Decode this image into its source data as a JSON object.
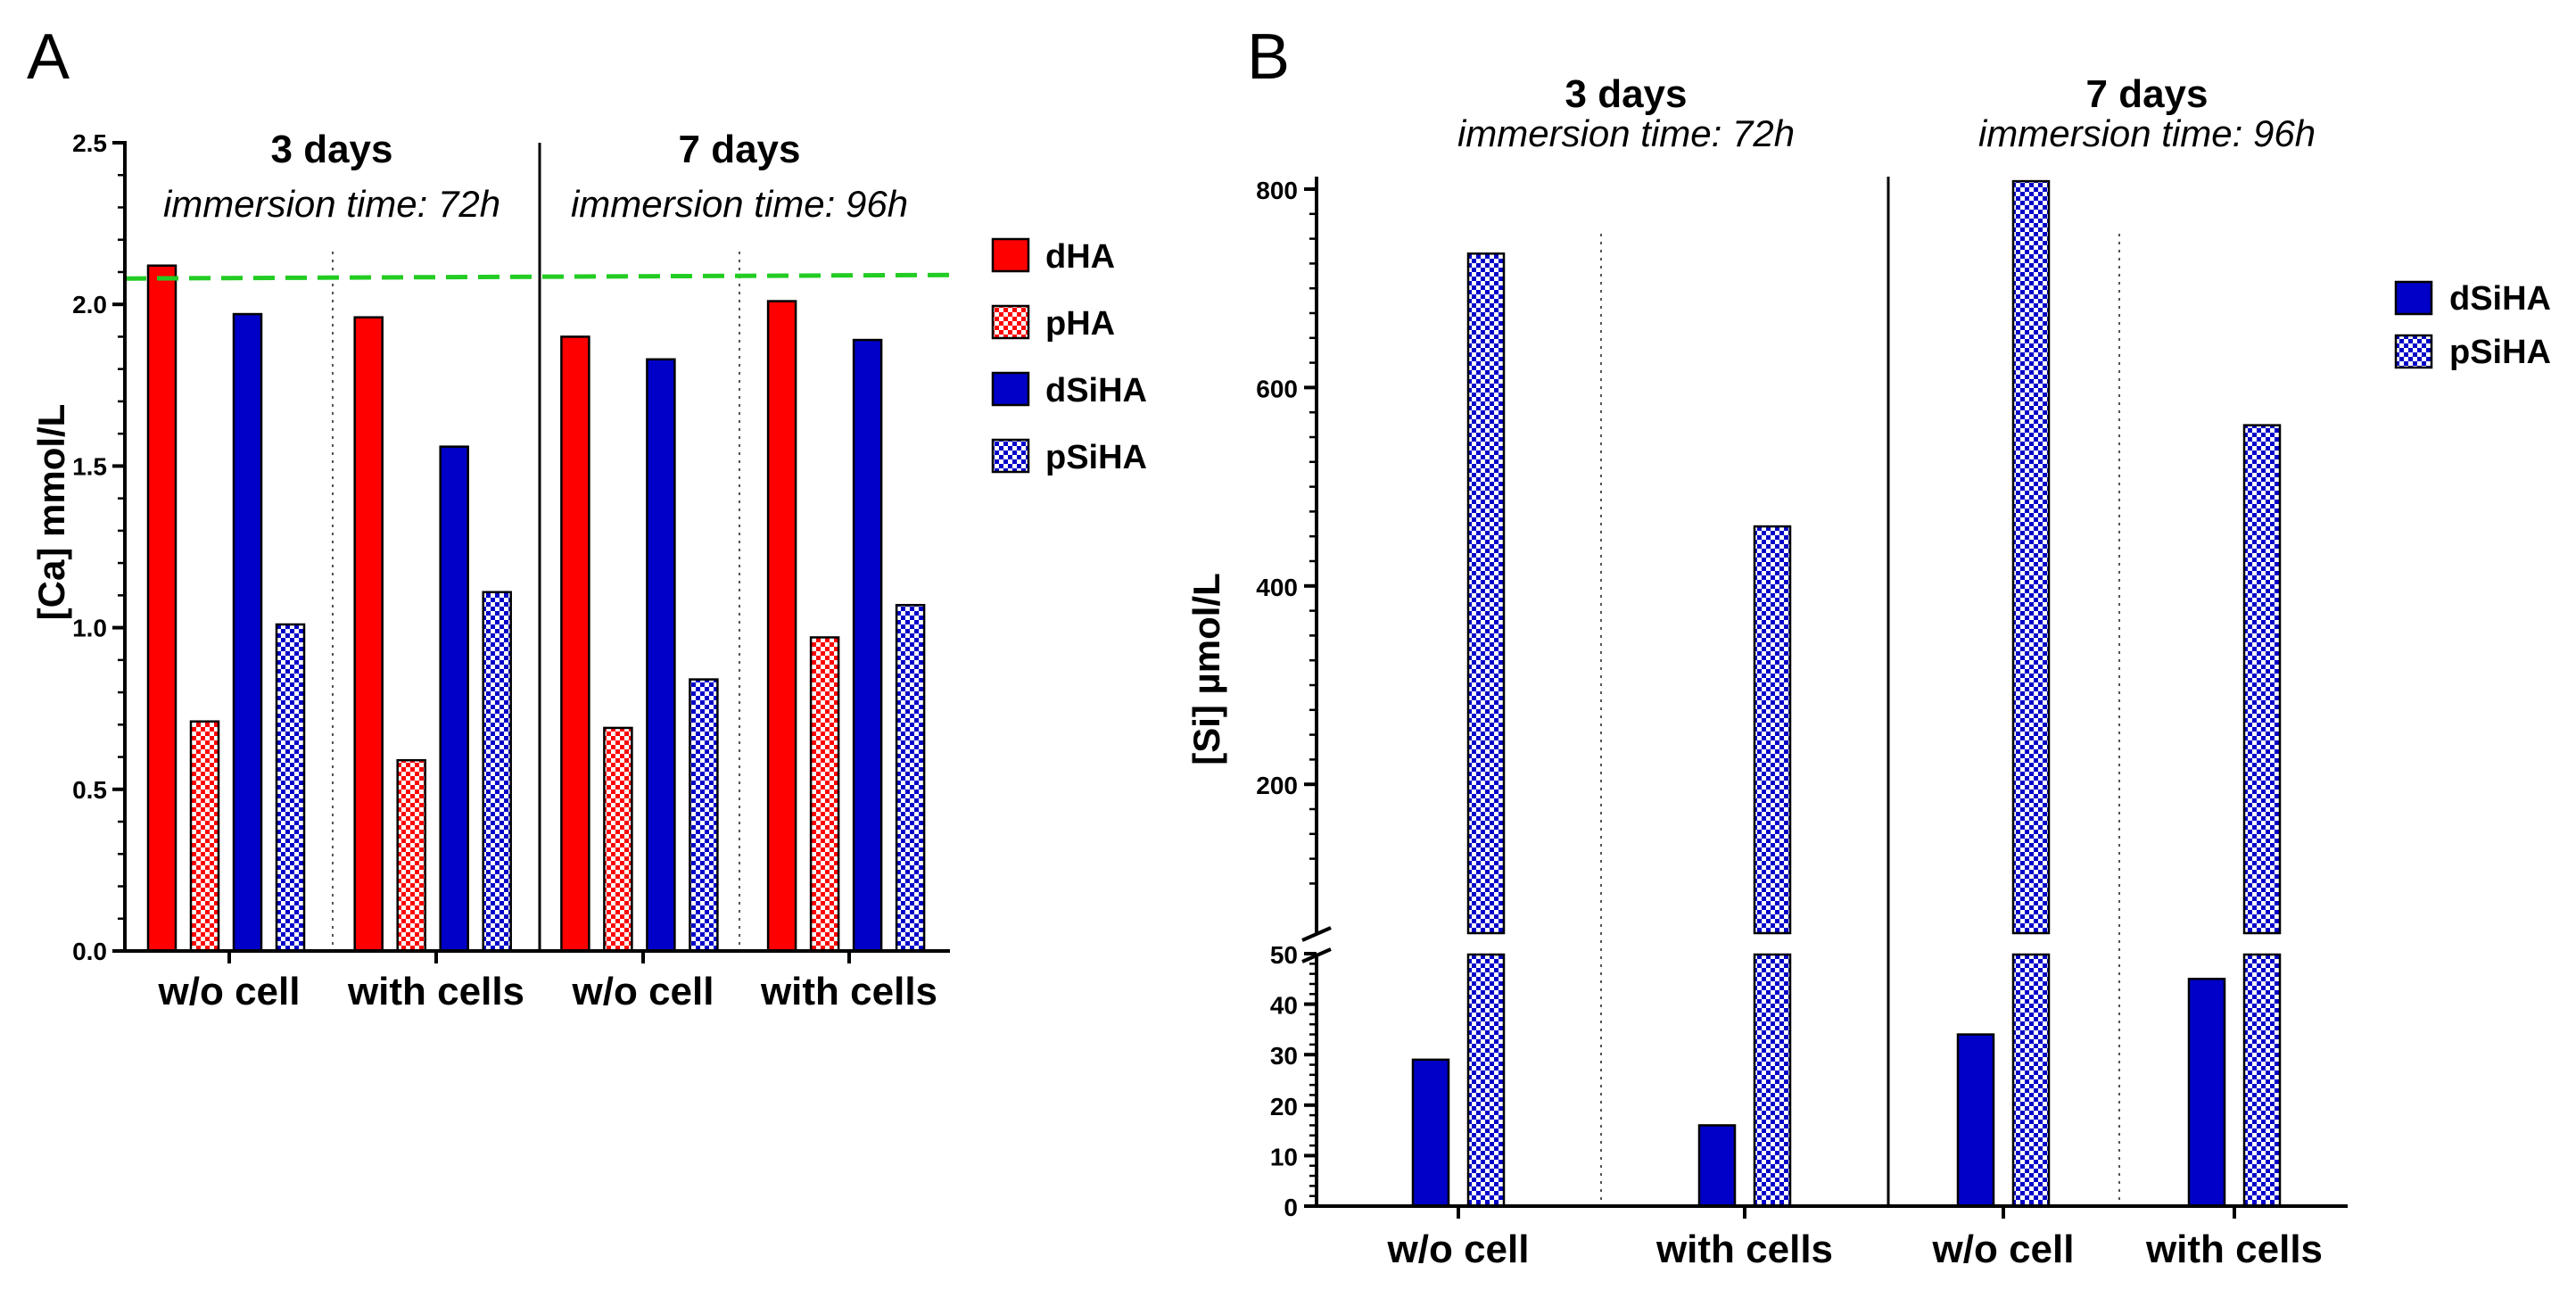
{
  "colors": {
    "red": "#ff0000",
    "blue": "#0000c8",
    "ref_line": "#22cc22",
    "axis": "#000000"
  },
  "chart_data": [
    {
      "panel_label": "A",
      "type": "bar",
      "ylabel": "[Ca] mmol/L",
      "ylim": [
        0,
        2.5
      ],
      "yticks": [
        "0.0",
        "0.5",
        "1.0",
        "1.5",
        "2.0",
        "2.5"
      ],
      "reference_line": 2.08,
      "groups": [
        {
          "title": "3 days",
          "subtitle": "immersion time: 72h",
          "categories": [
            "w/o cell",
            "with cells"
          ]
        },
        {
          "title": "7 days",
          "subtitle": "immersion time: 96h",
          "categories": [
            "w/o cell",
            "with cells"
          ]
        }
      ],
      "categories": [
        "w/o cell",
        "with cells",
        "w/o cell",
        "with cells"
      ],
      "series": [
        {
          "name": "dHA",
          "color": "#ff0000",
          "pattern": "solid",
          "values": [
            2.12,
            1.96,
            1.9,
            2.01
          ]
        },
        {
          "name": "pHA",
          "color": "#ff0000",
          "pattern": "checker",
          "values": [
            0.71,
            0.59,
            0.69,
            0.97
          ]
        },
        {
          "name": "dSiHA",
          "color": "#0000c8",
          "pattern": "solid",
          "values": [
            1.97,
            1.56,
            1.83,
            1.89
          ]
        },
        {
          "name": "pSiHA",
          "color": "#0000c8",
          "pattern": "checker",
          "values": [
            1.01,
            1.11,
            0.84,
            1.07
          ]
        }
      ],
      "legend": [
        "dHA",
        "pHA",
        "dSiHA",
        "pSiHA"
      ]
    },
    {
      "panel_label": "B",
      "type": "bar",
      "ylabel": "[Si] µmol/L",
      "axis_break": {
        "lower": [
          0,
          50
        ],
        "upper": [
          50,
          800
        ]
      },
      "yticks_lower": [
        "0",
        "10",
        "20",
        "30",
        "40",
        "50"
      ],
      "yticks_upper": [
        "200",
        "400",
        "600",
        "800"
      ],
      "groups": [
        {
          "title": "3 days",
          "subtitle": "immersion time: 72h",
          "categories": [
            "w/o cell",
            "with cells"
          ]
        },
        {
          "title": "7 days",
          "subtitle": "immersion time: 96h",
          "categories": [
            "w/o cell",
            "with cells"
          ]
        }
      ],
      "categories": [
        "w/o cell",
        "with cells",
        "w/o cell",
        "with cells"
      ],
      "series": [
        {
          "name": "dSiHA",
          "color": "#0000c8",
          "pattern": "solid",
          "values": [
            29,
            16,
            34,
            45
          ]
        },
        {
          "name": "pSiHA",
          "color": "#0000c8",
          "pattern": "checker",
          "values": [
            735,
            460,
            808,
            562
          ]
        }
      ],
      "legend": [
        "dSiHA",
        "pSiHA"
      ]
    }
  ]
}
